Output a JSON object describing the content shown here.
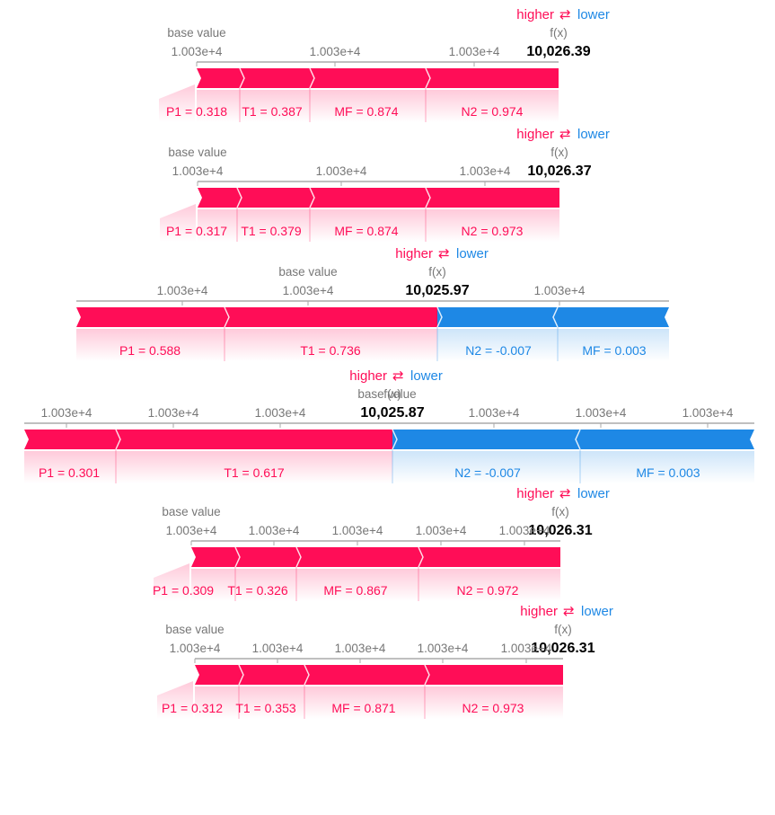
{
  "legend": {
    "higher": "higher",
    "arrows": "⇄",
    "lower": "lower"
  },
  "colors": {
    "positive": "#ff0d57",
    "negative": "#1e88e5",
    "axis": "#aaaaaa",
    "text_gray": "#777777"
  },
  "chart_data": [
    {
      "type": "force",
      "base_value_label": "base value",
      "fx_label": "f(x)",
      "fx_value": "10,026.39",
      "tick_labels": [
        "1.003e+4",
        "1.003e+4",
        "1.003e+4"
      ],
      "features": [
        {
          "label": "P1 = 0.318",
          "sign": "positive"
        },
        {
          "label": "T1 = 0.387",
          "sign": "positive"
        },
        {
          "label": "MF = 0.874",
          "sign": "positive"
        },
        {
          "label": "N2 = 0.974",
          "sign": "positive"
        }
      ]
    },
    {
      "type": "force",
      "base_value_label": "base value",
      "fx_label": "f(x)",
      "fx_value": "10,026.37",
      "tick_labels": [
        "1.003e+4",
        "1.003e+4",
        "1.003e+4"
      ],
      "features": [
        {
          "label": "P1 = 0.317",
          "sign": "positive"
        },
        {
          "label": "T1 = 0.379",
          "sign": "positive"
        },
        {
          "label": "MF = 0.874",
          "sign": "positive"
        },
        {
          "label": "N2 = 0.973",
          "sign": "positive"
        }
      ]
    },
    {
      "type": "force",
      "base_value_label": "base value",
      "fx_label": "f(x)",
      "fx_value": "10,025.97",
      "tick_labels": [
        "1.003e+4",
        "1.003e+4",
        "1.003e+4"
      ],
      "features": [
        {
          "label": "P1 = 0.588",
          "sign": "positive"
        },
        {
          "label": "T1 = 0.736",
          "sign": "positive"
        },
        {
          "label": "N2 = -0.007",
          "sign": "negative"
        },
        {
          "label": "MF = 0.003",
          "sign": "negative"
        }
      ]
    },
    {
      "type": "force",
      "base_value_label": "base value",
      "fx_label": "f(x)",
      "fx_value": "10,025.87",
      "tick_labels": [
        "1.003e+4",
        "1.003e+4",
        "1.003e+4",
        "1.003e+4",
        "1.003e+4",
        "1.003e+4"
      ],
      "features": [
        {
          "label": "P1 = 0.301",
          "sign": "positive"
        },
        {
          "label": "T1 = 0.617",
          "sign": "positive"
        },
        {
          "label": "N2 = -0.007",
          "sign": "negative"
        },
        {
          "label": "MF = 0.003",
          "sign": "negative"
        }
      ]
    },
    {
      "type": "force",
      "base_value_label": "base value",
      "fx_label": "f(x)",
      "fx_value": "10,026.31",
      "tick_labels": [
        "1.003e+4",
        "1.003e+4",
        "1.003e+4",
        "1.003e+4",
        "1.003e+4"
      ],
      "features": [
        {
          "label": "P1 = 0.309",
          "sign": "positive"
        },
        {
          "label": "T1 = 0.326",
          "sign": "positive"
        },
        {
          "label": "MF = 0.867",
          "sign": "positive"
        },
        {
          "label": "N2 = 0.972",
          "sign": "positive"
        }
      ]
    },
    {
      "type": "force",
      "base_value_label": "base value",
      "fx_label": "f(x)",
      "fx_value": "10,026.31",
      "tick_labels": [
        "1.003e+4",
        "1.003e+4",
        "1.003e+4",
        "1.003e+4",
        "1.003e+4"
      ],
      "features": [
        {
          "label": "P1 = 0.312",
          "sign": "positive"
        },
        {
          "label": "T1 = 0.353",
          "sign": "positive"
        },
        {
          "label": "MF = 0.871",
          "sign": "positive"
        },
        {
          "label": "N2 = 0.973",
          "sign": "positive"
        }
      ]
    }
  ]
}
